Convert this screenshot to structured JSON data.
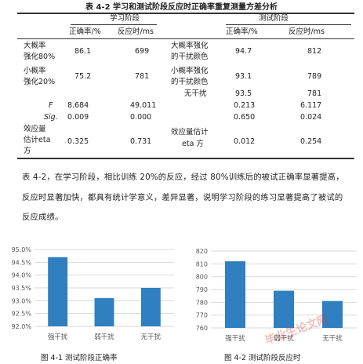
{
  "table": {
    "caption": "表 4-2 学习和测试阶段反应时正确率重复测量方差分析",
    "group_headers": [
      "学习阶段",
      "测试阶段"
    ],
    "sub_headers": [
      "正确率/%",
      "反应时/ms",
      "正确率/%",
      "反应时/ms"
    ],
    "rows": [
      {
        "l1": "大概率",
        "l2": "强化80%",
        "a": "86.1",
        "b": "699",
        "m1": "大概率强化",
        "m2": "的干扰颜色",
        "c": "94.7",
        "d": "812"
      },
      {
        "l1": "小概率",
        "l2": "强化20%",
        "a": "75.2",
        "b": "781",
        "m1": "小概率强化",
        "m2": "的干扰颜色",
        "c": "93.1",
        "d": "789"
      },
      {
        "l1": "",
        "l2": "",
        "a": "",
        "b": "",
        "m1": "无干扰",
        "m2": "",
        "c": "93.5",
        "d": "781"
      },
      {
        "l1": "F",
        "l2": "",
        "a": "8.684",
        "b": "49.011",
        "m1": "",
        "m2": "",
        "c": "0.213",
        "d": "6.117"
      },
      {
        "l1": "Sig.",
        "l2": "",
        "a": "0.009",
        "b": "0.000",
        "m1": "",
        "m2": "",
        "c": "0.650",
        "d": "0.024"
      },
      {
        "l1": "效应量",
        "l2": "估计eta",
        "l3": "方",
        "a": "0.325",
        "b": "0.731",
        "m1": "效应量估计",
        "m2": "eta 方",
        "c": "0.012",
        "d": "0.254"
      }
    ]
  },
  "paragraph": "表 4-2，在学习阶段，相比训练 20%的反应，经过 80%训练后的被试正确率显著提高，反应时显著加快，都具有统计学意义，差异显著，说明学习阶段的练习显著提高了被试的反应成绩。",
  "chart_data": [
    {
      "type": "bar",
      "title": "图 4-1 测试阶段正确率",
      "categories": [
        "强干扰",
        "弱干扰",
        "无干扰"
      ],
      "values": [
        94.7,
        93.1,
        93.5
      ],
      "ylim": [
        92.0,
        95.0
      ],
      "ticks": [
        "95.0%",
        "94.5%",
        "94.0%",
        "93.5%",
        "93.0%",
        "92.5%",
        "92.0%"
      ],
      "grid": true,
      "color": "#2f7fc1"
    },
    {
      "type": "bar",
      "title": "图 4-2 测试阶段反应时",
      "categories": [
        "强干扰",
        "弱干扰",
        "无干扰"
      ],
      "values": [
        812,
        789,
        781
      ],
      "ylim": [
        760,
        820
      ],
      "ticks": [
        "820",
        "810",
        "800",
        "790",
        "780",
        "770",
        "760"
      ],
      "grid": true,
      "color": "#2f7fc1"
    }
  ],
  "watermark": "毕业生论文网"
}
